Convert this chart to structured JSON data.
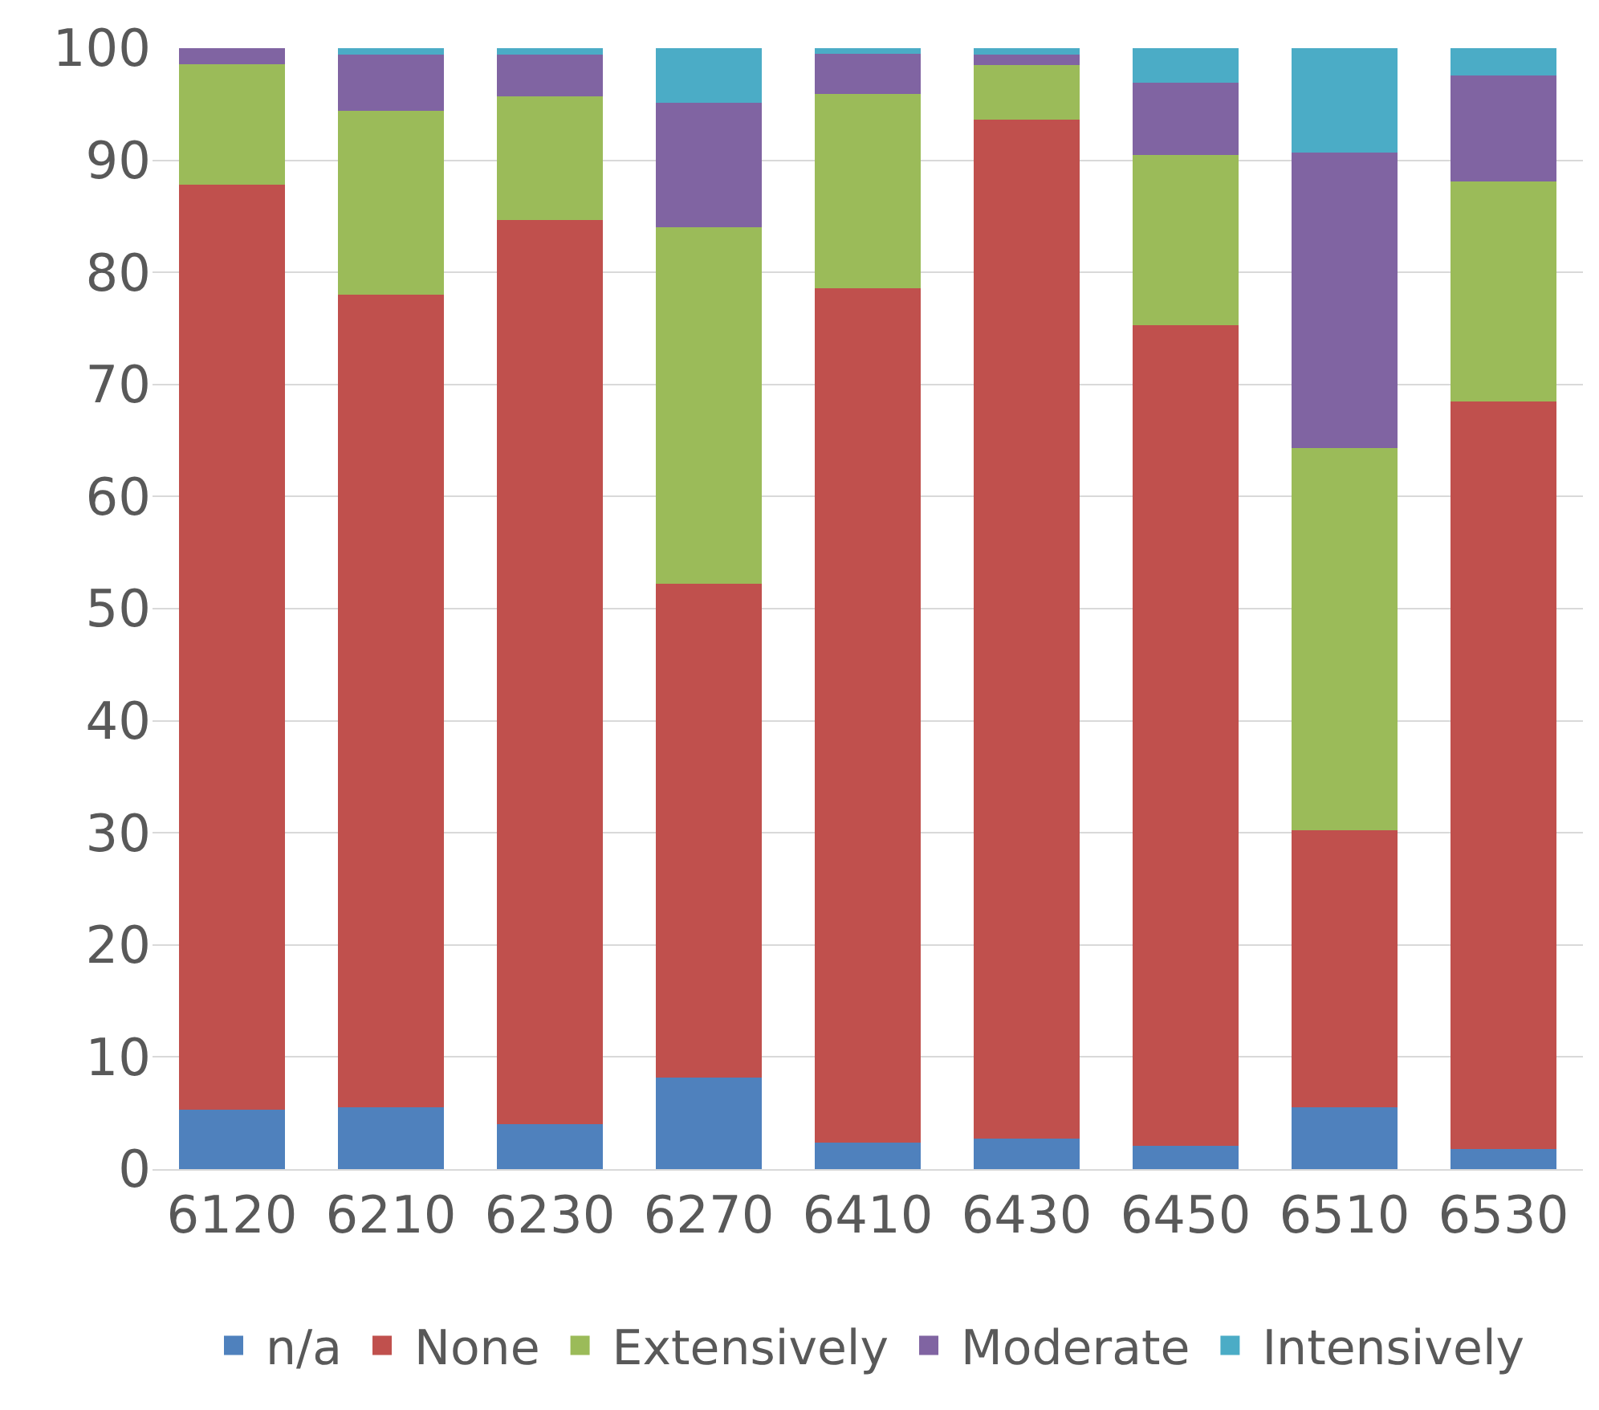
{
  "chart_data": {
    "type": "bar",
    "stacked": true,
    "categories": [
      "6120",
      "6210",
      "6230",
      "6270",
      "6410",
      "6430",
      "6450",
      "6510",
      "6530"
    ],
    "series": [
      {
        "name": "n/a",
        "color": "#4f81bd",
        "values": [
          5.3,
          5.5,
          4.0,
          8.2,
          2.4,
          2.7,
          2.1,
          5.5,
          1.8
        ]
      },
      {
        "name": "None",
        "color": "#c0504d",
        "values": [
          82.5,
          72.5,
          80.7,
          44.0,
          76.2,
          90.9,
          73.2,
          24.7,
          66.7
        ]
      },
      {
        "name": "Extensively",
        "color": "#9bbb59",
        "values": [
          10.8,
          16.4,
          11.0,
          31.8,
          17.3,
          4.9,
          15.2,
          34.1,
          19.6
        ]
      },
      {
        "name": "Moderate",
        "color": "#8064a2",
        "values": [
          1.4,
          5.0,
          3.7,
          11.1,
          3.6,
          0.9,
          6.4,
          26.4,
          9.5
        ]
      },
      {
        "name": "Intensively",
        "color": "#4bacc6",
        "values": [
          0,
          0.6,
          0.6,
          4.9,
          0.5,
          0.6,
          3.1,
          9.3,
          2.4
        ]
      }
    ],
    "ylim": [
      0,
      100
    ],
    "yticks": [
      0,
      10,
      20,
      30,
      40,
      50,
      60,
      70,
      80,
      90,
      100
    ],
    "grid": "y",
    "legend": "bottom"
  }
}
